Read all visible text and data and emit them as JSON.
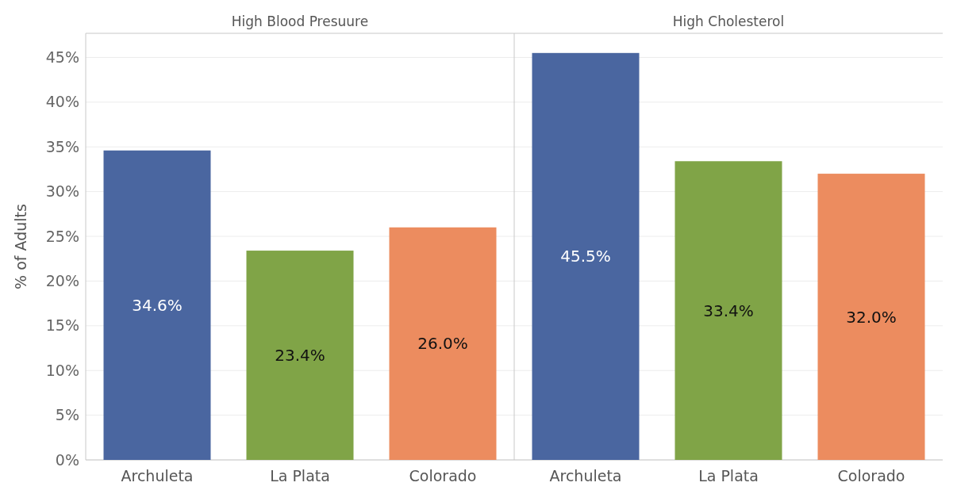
{
  "chart_data": [
    {
      "type": "bar",
      "title": "High Blood Presuure",
      "ylabel": "% of Adults",
      "categories": [
        "Archuleta",
        "La Plata",
        "Colorado"
      ],
      "values": [
        34.6,
        23.4,
        26.0
      ],
      "colors": [
        "#4a66a0",
        "#80a447",
        "#ec8c5f"
      ],
      "value_labels": [
        "34.6%",
        "23.4%",
        "26.0%"
      ],
      "ylim": [
        0,
        47.7
      ],
      "yticks": [
        {
          "value": 0,
          "label": "0%"
        },
        {
          "value": 5,
          "label": "5%"
        },
        {
          "value": 10,
          "label": "10%"
        },
        {
          "value": 15,
          "label": "15%"
        },
        {
          "value": 20,
          "label": "20%"
        },
        {
          "value": 25,
          "label": "25%"
        },
        {
          "value": 30,
          "label": "30%"
        },
        {
          "value": 35,
          "label": "35%"
        },
        {
          "value": 40,
          "label": "40%"
        },
        {
          "value": 45,
          "label": "45%"
        }
      ],
      "grid": "y"
    },
    {
      "type": "bar",
      "title": "High Cholesterol",
      "categories": [
        "Archuleta",
        "La Plata",
        "Colorado"
      ],
      "values": [
        45.5,
        33.4,
        32.0
      ],
      "colors": [
        "#4a66a0",
        "#80a447",
        "#ec8c5f"
      ],
      "value_labels": [
        "45.5%",
        "33.4%",
        "32.0%"
      ],
      "ylim": [
        0,
        47.7
      ],
      "yticks": [
        {
          "value": 0,
          "label": null
        },
        {
          "value": 5,
          "label": null
        },
        {
          "value": 10,
          "label": null
        },
        {
          "value": 15,
          "label": null
        },
        {
          "value": 20,
          "label": null
        },
        {
          "value": 25,
          "label": null
        },
        {
          "value": 30,
          "label": null
        },
        {
          "value": 35,
          "label": null
        },
        {
          "value": 40,
          "label": null
        },
        {
          "value": 45,
          "label": null
        }
      ],
      "grid": "y",
      "tick_labels": "x"
    }
  ]
}
